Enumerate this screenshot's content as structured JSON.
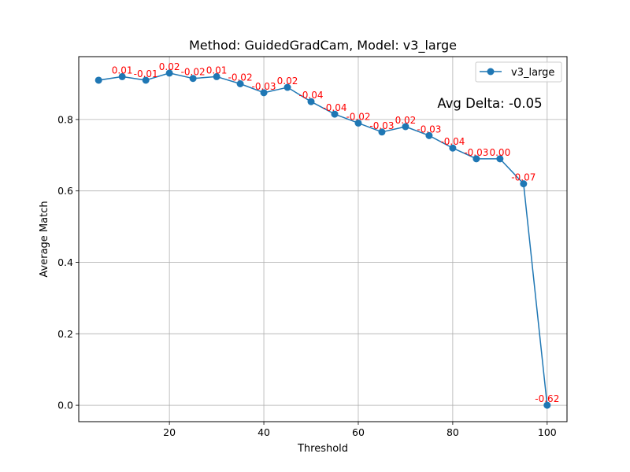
{
  "chart_data": {
    "type": "line",
    "title": "Method: GuidedGradCam, Model: v3_large",
    "xlabel": "Threshold",
    "ylabel": "Average Match",
    "xlim": [
      0.8,
      104.2
    ],
    "ylim": [
      -0.046,
      0.976
    ],
    "xticks": [
      20,
      40,
      60,
      80,
      100
    ],
    "yticks": [
      0.0,
      0.2,
      0.4,
      0.6,
      0.8
    ],
    "xtick_labels": [
      "20",
      "40",
      "60",
      "80",
      "100"
    ],
    "ytick_labels": [
      "0.0",
      "0.2",
      "0.4",
      "0.6",
      "0.8"
    ],
    "grid": true,
    "legend_position": "top-right",
    "series": [
      {
        "name": "v3_large",
        "color": "#1f77b4",
        "x": [
          5,
          10,
          15,
          20,
          25,
          30,
          35,
          40,
          45,
          50,
          55,
          60,
          65,
          70,
          75,
          80,
          85,
          90,
          95,
          100
        ],
        "y": [
          0.91,
          0.92,
          0.91,
          0.93,
          0.915,
          0.92,
          0.9,
          0.875,
          0.89,
          0.85,
          0.815,
          0.79,
          0.765,
          0.78,
          0.755,
          0.72,
          0.69,
          0.69,
          0.62,
          0.0
        ]
      }
    ],
    "delta_labels": [
      {
        "x": 10,
        "y": 0.92,
        "text": "0.01"
      },
      {
        "x": 15,
        "y": 0.91,
        "text": "-0.01"
      },
      {
        "x": 20,
        "y": 0.93,
        "text": "0.02"
      },
      {
        "x": 25,
        "y": 0.915,
        "text": "-0.02"
      },
      {
        "x": 30,
        "y": 0.92,
        "text": "0.01"
      },
      {
        "x": 35,
        "y": 0.9,
        "text": "-0.02"
      },
      {
        "x": 40,
        "y": 0.875,
        "text": "-0.03"
      },
      {
        "x": 45,
        "y": 0.89,
        "text": "0.02"
      },
      {
        "x": 50,
        "y": 0.85,
        "text": "-0.04"
      },
      {
        "x": 55,
        "y": 0.815,
        "text": "-0.04"
      },
      {
        "x": 60,
        "y": 0.79,
        "text": "-0.02"
      },
      {
        "x": 65,
        "y": 0.765,
        "text": "-0.03"
      },
      {
        "x": 70,
        "y": 0.78,
        "text": "0.02"
      },
      {
        "x": 75,
        "y": 0.755,
        "text": "-0.03"
      },
      {
        "x": 80,
        "y": 0.72,
        "text": "-0.04"
      },
      {
        "x": 85,
        "y": 0.69,
        "text": "-0.03"
      },
      {
        "x": 90,
        "y": 0.69,
        "text": "0.00"
      },
      {
        "x": 95,
        "y": 0.62,
        "text": "-0.07"
      },
      {
        "x": 100,
        "y": 0.0,
        "text": "-0.62"
      }
    ],
    "delta_label_color": "#ff0000",
    "annotation": "Avg Delta: -0.05"
  }
}
